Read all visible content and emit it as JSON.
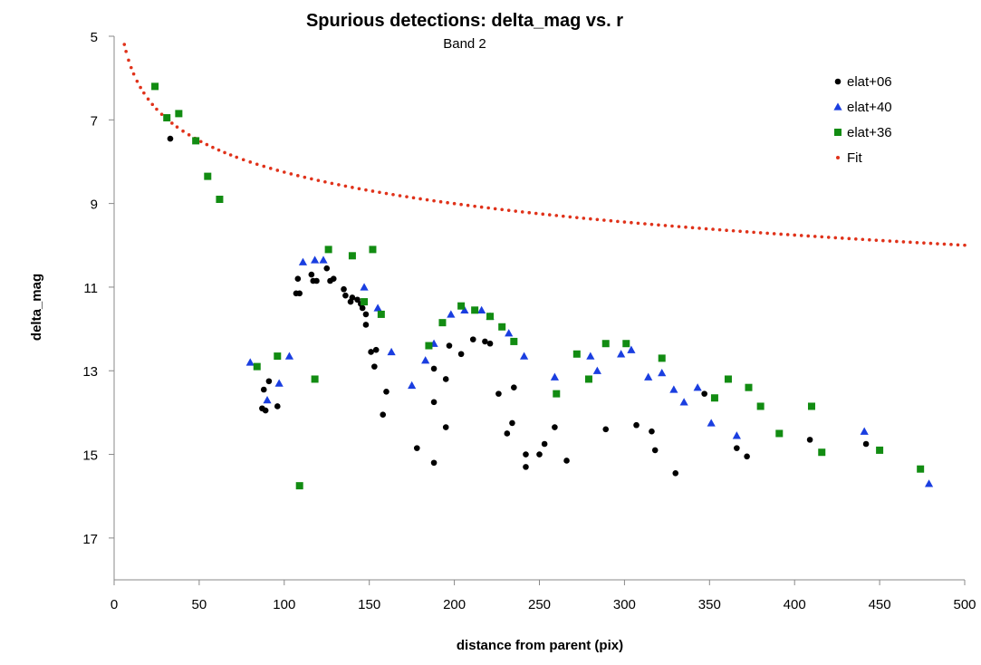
{
  "chart_data": {
    "type": "scatter",
    "title": "Spurious detections: delta_mag vs. r",
    "subtitle": "Band 2",
    "xlabel": "distance from parent (pix)",
    "ylabel": "delta_mag",
    "xlim": [
      0,
      500
    ],
    "ylim": [
      5,
      18
    ],
    "y_inverted": true,
    "xticks": [
      0,
      50,
      100,
      150,
      200,
      250,
      300,
      350,
      400,
      450,
      500
    ],
    "yticks": [
      5,
      7,
      9,
      11,
      13,
      15,
      17
    ],
    "grid": false,
    "legend_position": "top-right",
    "series": [
      {
        "name": "elat+06",
        "marker": "circle",
        "color": "#000000",
        "points": [
          [
            33,
            7.45
          ],
          [
            87,
            13.9
          ],
          [
            88,
            13.45
          ],
          [
            89,
            13.95
          ],
          [
            91,
            13.25
          ],
          [
            96,
            13.85
          ],
          [
            107,
            11.15
          ],
          [
            108,
            10.8
          ],
          [
            109,
            11.15
          ],
          [
            116,
            10.7
          ],
          [
            117,
            10.85
          ],
          [
            119,
            10.85
          ],
          [
            125,
            10.55
          ],
          [
            127,
            10.85
          ],
          [
            129,
            10.8
          ],
          [
            135,
            11.05
          ],
          [
            136,
            11.2
          ],
          [
            139,
            11.35
          ],
          [
            140,
            11.25
          ],
          [
            143,
            11.3
          ],
          [
            145,
            11.4
          ],
          [
            146,
            11.5
          ],
          [
            148,
            11.65
          ],
          [
            148,
            11.9
          ],
          [
            151,
            12.55
          ],
          [
            153,
            12.9
          ],
          [
            154,
            12.5
          ],
          [
            158,
            14.05
          ],
          [
            160,
            13.5
          ],
          [
            178,
            14.85
          ],
          [
            188,
            15.2
          ],
          [
            188,
            13.75
          ],
          [
            188,
            12.95
          ],
          [
            195,
            13.2
          ],
          [
            195,
            14.35
          ],
          [
            197,
            12.4
          ],
          [
            204,
            12.6
          ],
          [
            211,
            12.25
          ],
          [
            218,
            12.3
          ],
          [
            221,
            12.35
          ],
          [
            226,
            13.55
          ],
          [
            231,
            14.5
          ],
          [
            234,
            14.25
          ],
          [
            235,
            13.4
          ],
          [
            242,
            15.0
          ],
          [
            242,
            15.3
          ],
          [
            250,
            15.0
          ],
          [
            253,
            14.75
          ],
          [
            259,
            14.35
          ],
          [
            266,
            15.15
          ],
          [
            289,
            14.4
          ],
          [
            307,
            14.3
          ],
          [
            316,
            14.45
          ],
          [
            318,
            14.9
          ],
          [
            330,
            15.45
          ],
          [
            347,
            13.55
          ],
          [
            366,
            14.85
          ],
          [
            372,
            15.05
          ],
          [
            409,
            14.65
          ],
          [
            442,
            14.75
          ]
        ]
      },
      {
        "name": "elat+40",
        "marker": "triangle",
        "color": "#1a3ee0",
        "points": [
          [
            80,
            12.8
          ],
          [
            90,
            13.7
          ],
          [
            97,
            13.3
          ],
          [
            103,
            12.65
          ],
          [
            111,
            10.4
          ],
          [
            118,
            10.35
          ],
          [
            123,
            10.35
          ],
          [
            147,
            11.0
          ],
          [
            155,
            11.5
          ],
          [
            163,
            12.55
          ],
          [
            175,
            13.35
          ],
          [
            183,
            12.75
          ],
          [
            188,
            12.35
          ],
          [
            198,
            11.65
          ],
          [
            206,
            11.55
          ],
          [
            216,
            11.55
          ],
          [
            221,
            11.7
          ],
          [
            232,
            12.1
          ],
          [
            241,
            12.65
          ],
          [
            259,
            13.15
          ],
          [
            280,
            12.65
          ],
          [
            284,
            13.0
          ],
          [
            298,
            12.6
          ],
          [
            304,
            12.5
          ],
          [
            314,
            13.15
          ],
          [
            322,
            13.05
          ],
          [
            329,
            13.45
          ],
          [
            335,
            13.75
          ],
          [
            343,
            13.4
          ],
          [
            351,
            14.25
          ],
          [
            366,
            14.55
          ],
          [
            441,
            14.45
          ],
          [
            479,
            15.7
          ]
        ]
      },
      {
        "name": "elat+36",
        "marker": "square",
        "color": "#128c12",
        "points": [
          [
            24,
            6.2
          ],
          [
            31,
            6.95
          ],
          [
            38,
            6.85
          ],
          [
            48,
            7.5
          ],
          [
            55,
            8.35
          ],
          [
            62,
            8.9
          ],
          [
            84,
            12.9
          ],
          [
            96,
            12.65
          ],
          [
            109,
            15.75
          ],
          [
            118,
            13.2
          ],
          [
            126,
            10.1
          ],
          [
            140,
            10.25
          ],
          [
            147,
            11.35
          ],
          [
            152,
            10.1
          ],
          [
            157,
            11.65
          ],
          [
            185,
            12.4
          ],
          [
            193,
            11.85
          ],
          [
            204,
            11.45
          ],
          [
            212,
            11.55
          ],
          [
            221,
            11.7
          ],
          [
            228,
            11.95
          ],
          [
            235,
            12.3
          ],
          [
            260,
            13.55
          ],
          [
            272,
            12.6
          ],
          [
            279,
            13.2
          ],
          [
            289,
            12.35
          ],
          [
            301,
            12.35
          ],
          [
            322,
            12.7
          ],
          [
            353,
            13.65
          ],
          [
            361,
            13.2
          ],
          [
            373,
            13.4
          ],
          [
            380,
            13.85
          ],
          [
            391,
            14.5
          ],
          [
            410,
            13.85
          ],
          [
            416,
            14.95
          ],
          [
            450,
            14.9
          ],
          [
            474,
            15.35
          ]
        ]
      },
      {
        "name": "Fit",
        "marker": "dotted-line",
        "color": "#e0321a",
        "formula": "delta_mag = 2.5*log10(r) + 3.25",
        "x_range": [
          6,
          500
        ]
      }
    ]
  }
}
